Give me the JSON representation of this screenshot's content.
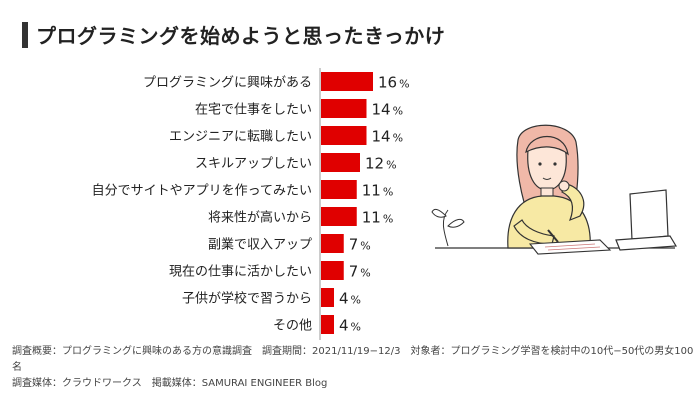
{
  "title": "プログラミングを始めようと思ったきっかけ",
  "chart_data": {
    "type": "bar",
    "orientation": "horizontal",
    "categories": [
      "プログラミングに興味がある",
      "在宅で仕事をしたい",
      "エンジニアに転職したい",
      "スキルアップしたい",
      "自分でサイトやアプリを作ってみたい",
      "将来性が高いから",
      "副業で収入アップ",
      "現在の仕事に活かしたい",
      "子供が学校で習うから",
      "その他"
    ],
    "values": [
      16,
      14,
      14,
      12,
      11,
      11,
      7,
      7,
      4,
      4
    ],
    "unit": "%",
    "bar_color": "#e00000",
    "axis_color": "#999999"
  },
  "footer": {
    "line1_a": "調査概要：プログラミングに興味のある方の意識調査",
    "line1_b": "調査期間：2021/11/19−12/3",
    "line1_c": "対象者：プログラミング学習を検討中の10代−50代の男女100名",
    "line2_a": "調査媒体：クラウドワークス",
    "line2_b": "掲載媒体：SAMURAI ENGINEER Blog"
  }
}
